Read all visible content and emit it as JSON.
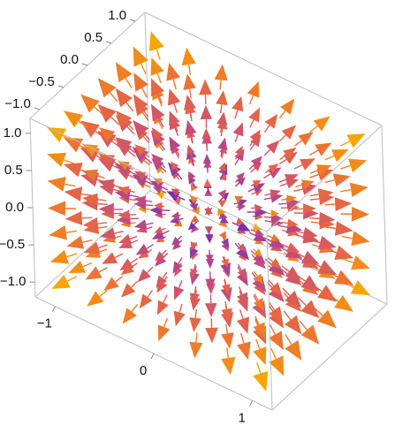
{
  "chart_data": {
    "type": "vector-field-3d",
    "title": "",
    "xlabel": "",
    "ylabel": "",
    "zlabel": "",
    "field": "radial outward (x, y, z)",
    "x_range": [
      -1.2,
      1.2
    ],
    "y_range": [
      -1.2,
      1.2
    ],
    "z_range": [
      -1.2,
      1.2
    ],
    "grid_samples_per_axis": 7,
    "color_scheme": {
      "low": "#4b0fc2",
      "mid_low": "#8b3aa6",
      "mid": "#c94e78",
      "mid_high": "#ea6a3c",
      "high": "#f7a500"
    },
    "box": true,
    "axes": {
      "x": {
        "ticks": [
          -1,
          0,
          1
        ],
        "tick_labels": [
          "−1",
          "0",
          "1"
        ]
      },
      "y": {
        "ticks": [
          -1,
          -0.5,
          0,
          0.5,
          1
        ],
        "tick_labels": [
          "−1.0",
          "−0.5",
          "0.0",
          "0.5",
          "1.0"
        ]
      },
      "z": {
        "ticks": [
          -1,
          -0.5,
          0,
          0.5,
          1
        ],
        "tick_labels": [
          "−1.0",
          "−0.5",
          "0.0",
          "0.5",
          "1.0"
        ]
      }
    }
  }
}
